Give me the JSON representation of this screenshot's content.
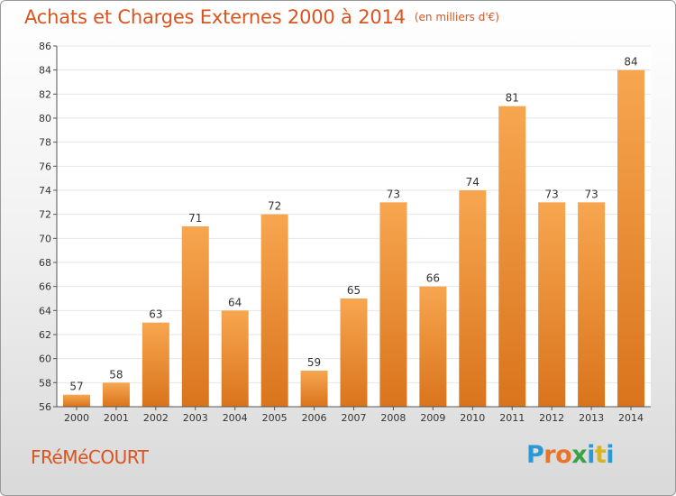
{
  "title": "Achats et Charges Externes 2000 à 2014",
  "unit": "(en milliers d'€)",
  "place": "FRéMéCOURT",
  "logo": [
    "P",
    "r",
    "o",
    "x",
    "i",
    "t",
    "i"
  ],
  "chart_data": {
    "type": "bar",
    "categories": [
      "2000",
      "2001",
      "2002",
      "2003",
      "2004",
      "2005",
      "2006",
      "2007",
      "2008",
      "2009",
      "2010",
      "2011",
      "2012",
      "2013",
      "2014"
    ],
    "values": [
      57,
      58,
      63,
      71,
      64,
      72,
      59,
      65,
      73,
      66,
      74,
      81,
      73,
      73,
      84
    ],
    "ylim": [
      56,
      86
    ],
    "yticks": [
      56,
      58,
      60,
      62,
      64,
      66,
      68,
      70,
      72,
      74,
      76,
      78,
      80,
      82,
      84,
      86
    ],
    "grid": true,
    "bar_color": "#f0962f",
    "grid_color": "#e6e6e6"
  }
}
